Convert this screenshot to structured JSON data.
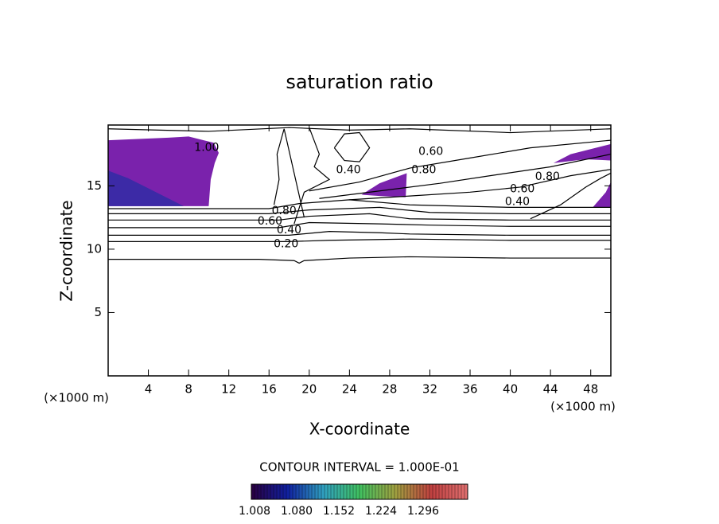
{
  "chart_data": {
    "type": "contour",
    "title": "saturation ratio",
    "x_label": "X-coordinate",
    "y_label": "Z-coordinate",
    "x_unit_label": "(×1000 m)",
    "y_unit_label": "(×1000 m)",
    "xlim": [
      0,
      50
    ],
    "ylim": [
      0,
      19.8
    ],
    "xticks": [
      4,
      8,
      12,
      16,
      20,
      24,
      28,
      32,
      36,
      40,
      44,
      48
    ],
    "yticks": [
      5,
      10,
      15
    ],
    "regions": [
      {
        "color": "#7a22ac",
        "x": [
          0,
          0,
          6,
          8,
          10.5,
          11,
          10.6,
          10.2,
          10
        ],
        "y": [
          13.4,
          18.6,
          18.8,
          18.9,
          18.4,
          17.6,
          16.8,
          15.5,
          13.4
        ]
      },
      {
        "color": "#3c2aa6",
        "x": [
          0,
          0,
          2,
          4,
          6,
          7.5
        ],
        "y": [
          13.4,
          16.2,
          15.6,
          14.8,
          14,
          13.4
        ]
      },
      {
        "color": "#7a22ac",
        "x": [
          25.2,
          27,
          29.7,
          29.6,
          27
        ],
        "y": [
          14.3,
          15.2,
          16,
          14.1,
          14.2
        ]
      },
      {
        "color": "#7a22ac",
        "x": [
          44.3,
          46,
          50,
          50,
          47.5
        ],
        "y": [
          16.8,
          17.5,
          18.3,
          17,
          17.1
        ]
      },
      {
        "color": "#7a22ac",
        "x": [
          48.2,
          49.5,
          50,
          50
        ],
        "y": [
          13.3,
          14.5,
          15.3,
          13.3
        ]
      }
    ],
    "lines": [
      {
        "x": [
          0,
          15,
          18.5,
          19,
          19.5,
          24,
          30,
          40,
          50
        ],
        "y": [
          9.2,
          9.2,
          9.1,
          8.9,
          9.1,
          9.3,
          9.4,
          9.3,
          9.3
        ]
      },
      {
        "x": [
          0,
          18,
          22,
          30,
          40,
          50
        ],
        "y": [
          10.6,
          10.6,
          10.7,
          10.8,
          10.7,
          10.7
        ]
      },
      {
        "x": [
          0,
          18,
          22,
          27,
          30,
          40,
          50
        ],
        "y": [
          11.1,
          11.1,
          11.4,
          11.3,
          11.2,
          11.1,
          11.1
        ]
      },
      {
        "x": [
          0,
          17,
          20,
          27,
          32,
          40,
          50
        ],
        "y": [
          11.7,
          11.7,
          12.1,
          12,
          11.9,
          11.8,
          11.8
        ]
      },
      {
        "x": [
          0,
          17,
          20,
          26,
          30,
          40,
          50
        ],
        "y": [
          12.3,
          12.3,
          12.6,
          12.8,
          12.4,
          12.3,
          12.3
        ]
      },
      {
        "x": [
          0,
          16,
          20,
          27,
          32,
          40,
          50
        ],
        "y": [
          12.8,
          12.8,
          13.1,
          13.3,
          12.9,
          12.8,
          12.8
        ]
      },
      {
        "x": [
          0,
          16,
          19,
          24,
          30,
          40,
          50
        ],
        "y": [
          13.2,
          13.2,
          13.6,
          13.9,
          13.5,
          13.3,
          13.3
        ]
      },
      {
        "x": [
          16.5,
          17,
          16.8,
          17.5,
          18.5,
          19.5
        ],
        "y": [
          13.5,
          15.5,
          17.5,
          19.5,
          16,
          12.5
        ]
      },
      {
        "x": [
          20,
          21,
          20.5,
          22,
          19.5,
          18.5
        ],
        "y": [
          19.6,
          17.5,
          16.5,
          15.5,
          14.5,
          12
        ]
      },
      {
        "x": [
          22.5,
          23.5,
          25,
          26,
          25,
          23.5,
          22.5
        ],
        "y": [
          18,
          19.1,
          19.2,
          18,
          16.9,
          17,
          18
        ]
      },
      {
        "x": [
          20,
          25,
          30,
          36,
          42,
          50
        ],
        "y": [
          14.6,
          15.3,
          16.4,
          17.2,
          18,
          18.6
        ]
      },
      {
        "x": [
          21,
          27,
          33,
          38,
          44,
          50
        ],
        "y": [
          14,
          14.6,
          15.2,
          15.8,
          16.5,
          17.5
        ]
      },
      {
        "x": [
          24,
          30,
          36,
          41,
          46,
          50
        ],
        "y": [
          13.9,
          14.2,
          14.5,
          14.9,
          15.8,
          16.3
        ]
      },
      {
        "x": [
          42,
          45,
          47.5,
          49,
          50
        ],
        "y": [
          12.4,
          13.5,
          14.9,
          15.6,
          16
        ]
      },
      {
        "x": [
          0,
          10,
          18,
          24,
          30,
          40,
          50
        ],
        "y": [
          19.5,
          19.3,
          19.6,
          19.4,
          19.5,
          19.2,
          19.5
        ]
      }
    ],
    "labels": [
      {
        "text": "1.00",
        "x": 9.8,
        "y": 18
      },
      {
        "text": "0.60",
        "x": 32.1,
        "y": 17.7
      },
      {
        "text": "0.40",
        "x": 23.9,
        "y": 16.25
      },
      {
        "text": "0.80",
        "x": 31.4,
        "y": 16.25
      },
      {
        "text": "0.60",
        "x": 41.2,
        "y": 14.75
      },
      {
        "text": "0.80",
        "x": 43.7,
        "y": 15.7
      },
      {
        "text": "0.40",
        "x": 40.7,
        "y": 13.75
      },
      {
        "text": "0.80",
        "x": 17.5,
        "y": 13
      },
      {
        "text": "0.60",
        "x": 16.1,
        "y": 12.2
      },
      {
        "text": "0.40",
        "x": 18,
        "y": 11.5
      },
      {
        "text": "0.20",
        "x": 17.7,
        "y": 10.4
      }
    ],
    "contour_interval": "CONTOUR INTERVAL = 1.000E-01",
    "colorbar": {
      "clim": [
        1.008,
        1.296
      ],
      "colors": [
        "#2a0040",
        "#1020a0",
        "#30a0c0",
        "#40c060",
        "#a0a040",
        "#c04040",
        "#e07070"
      ],
      "ticks": [
        {
          "value": 1.008,
          "label": "1.008"
        },
        {
          "value": 1.08,
          "label": "1.080"
        },
        1.152,
        1.224,
        1.296
      ]
    }
  }
}
